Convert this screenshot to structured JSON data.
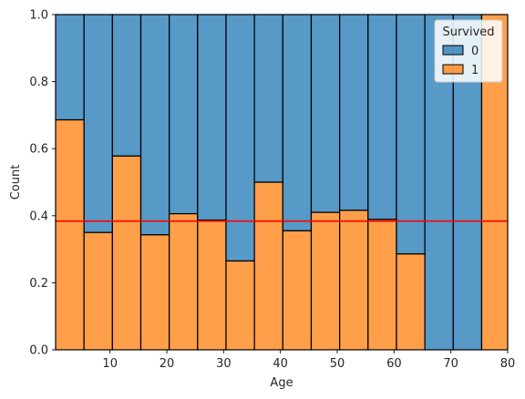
{
  "chart_data": {
    "type": "bar",
    "stacked": "fill",
    "title": "",
    "xlabel": "Age",
    "ylabel": "Count",
    "xlim": [
      0.42,
      80
    ],
    "ylim": [
      0,
      1
    ],
    "x_ticks": [
      10,
      20,
      30,
      40,
      50,
      60,
      70,
      80
    ],
    "y_ticks": [
      0.0,
      0.2,
      0.4,
      0.6,
      0.8,
      1.0
    ],
    "x_tick_labels": [
      "10",
      "20",
      "30",
      "40",
      "50",
      "60",
      "70",
      "80"
    ],
    "y_tick_labels": [
      "0.0",
      "0.2",
      "0.4",
      "0.6",
      "0.8",
      "1.0"
    ],
    "bin_edges": [
      0.42,
      5.42,
      10.42,
      15.42,
      20.42,
      25.42,
      30.42,
      35.42,
      40.42,
      45.42,
      50.42,
      55.42,
      60.42,
      65.42,
      70.42,
      75.42,
      80
    ],
    "survived_1_fraction": [
      0.686,
      0.35,
      0.578,
      0.343,
      0.406,
      0.387,
      0.265,
      0.5,
      0.355,
      0.41,
      0.416,
      0.389,
      0.286,
      0.0,
      0.0,
      1.0
    ],
    "reference_line": {
      "y": 0.384,
      "color": "#ff0000"
    },
    "grid": false,
    "legend": {
      "title": "Survived",
      "placement": "top-right",
      "entries": [
        {
          "label": "0",
          "color": "#1f77b4"
        },
        {
          "label": "1",
          "color": "#ff7f0e"
        }
      ]
    },
    "series": [
      {
        "name": "0",
        "color": "#1f77b4"
      },
      {
        "name": "1",
        "color": "#ff7f0e"
      }
    ]
  }
}
